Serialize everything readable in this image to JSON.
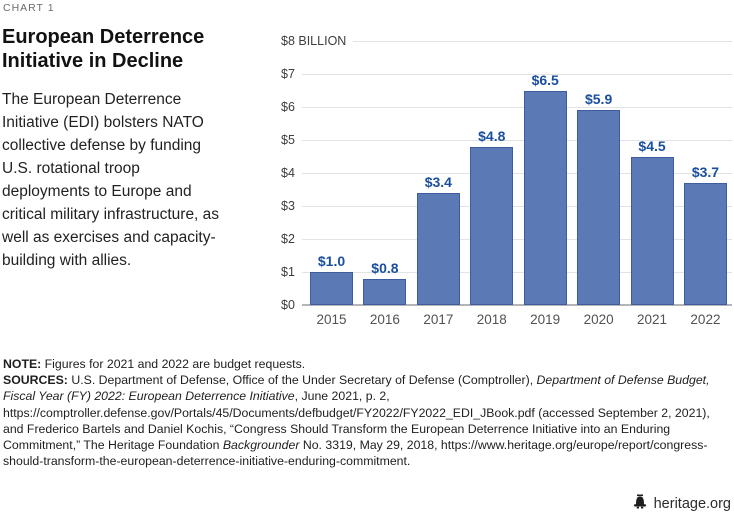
{
  "page": {
    "kicker": "CHART 1",
    "title": "European Deterrence Initiative in Decline",
    "description": "The European Deterrence Initiative (EDI) bolsters NATO collective defense by funding U.S. rotational troop deployments to Europe and critical military infrastructure, as well as exercises and capacity-building with allies."
  },
  "chart_data": {
    "type": "bar",
    "title": "European Deterrence Initiative in Decline",
    "unit": "$ billions (EDI funding by fiscal year)",
    "categories": [
      "2015",
      "2016",
      "2017",
      "2018",
      "2019",
      "2020",
      "2021",
      "2022"
    ],
    "values": [
      1.0,
      0.8,
      3.4,
      4.8,
      6.5,
      5.9,
      4.5,
      3.7
    ],
    "value_labels": [
      "$1.0",
      "$0.8",
      "$3.4",
      "$4.8",
      "$6.5",
      "$5.9",
      "$4.5",
      "$3.7"
    ],
    "xlabel": "",
    "ylabel": "$8 BILLION",
    "ylim": [
      0,
      8
    ],
    "ytick_labels": [
      "$8 BILLION",
      "$7",
      "$6",
      "$5",
      "$4",
      "$3",
      "$2",
      "$1",
      "$0"
    ],
    "ytick_values": [
      8,
      7,
      6,
      5,
      4,
      3,
      2,
      1,
      0
    ],
    "grid": true,
    "legend": false,
    "colors": {
      "bar_fill": "#5b79b5",
      "bar_border": "#3e5d9e",
      "value_label": "#1b4f9d",
      "gridline": "#e3e3e3",
      "baseline": "#b5b5b5",
      "tick_label": "#3d3d3d"
    }
  },
  "notes": {
    "note_segments": [
      {
        "t": "NOTE: ",
        "b": true
      },
      {
        "t": "Figures for 2021 and 2022 are budget requests."
      }
    ],
    "sources_segments": [
      {
        "t": "SOURCES: ",
        "b": true
      },
      {
        "t": "U.S. Department of Defense, Office of the Under Secretary of Defense (Comptroller), "
      },
      {
        "t": "Department of Defense Budget, Fiscal Year (FY) 2022: European Deterrence Initiative",
        "i": true
      },
      {
        "t": ", June 2021, p. 2, https://comptroller.defense.gov/Portals/45/Documents/defbudget/FY2022/FY2022_EDI_JBook.pdf (accessed September 2, 2021), and Frederico Bartels and Daniel Kochis, “Congress Should Transform the European Deterrence Initiative into an Enduring Commitment,” The Heritage Foundation "
      },
      {
        "t": "Backgrounder",
        "i": true
      },
      {
        "t": " No. 3319, May 29, 2018, https://www.heritage.org/europe/report/congress-should-transform-the-european-deterrence-initiative-enduring-commitment."
      }
    ]
  },
  "footer": {
    "site": "heritage.org",
    "logo_icon": "liberty-bell"
  }
}
